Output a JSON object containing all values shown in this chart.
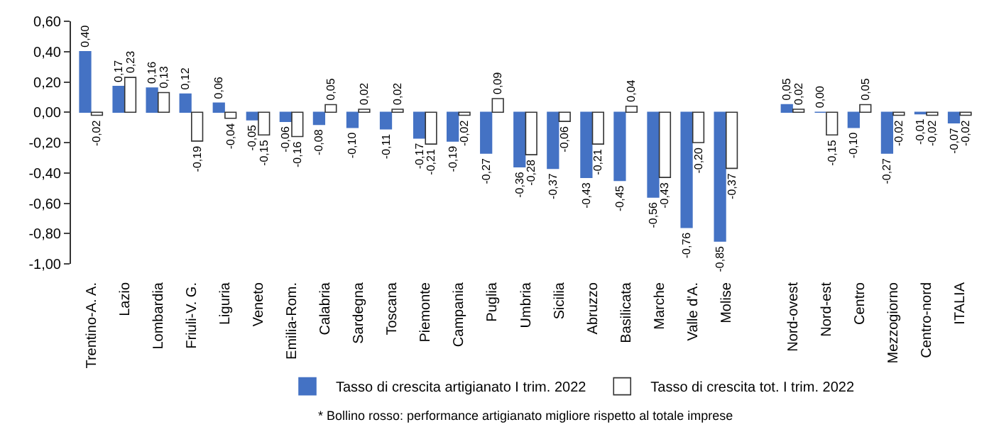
{
  "chart_data": {
    "type": "bar",
    "categories": [
      "Trentino-A. A.",
      "Lazio",
      "Lombardia",
      "Friuli-V. G.",
      "Liguria",
      "Veneto",
      "Emilia-Rom.",
      "Calabria",
      "Sardegna",
      "Toscana",
      "Piemonte",
      "Campania",
      "Puglia",
      "Umbria",
      "Sicilia",
      "Abruzzo",
      "Basilicata",
      "Marche",
      "Valle d'A.",
      "Molise",
      null,
      "Nord-ovest",
      "Nord-est",
      "Centro",
      "Mezzogiorno",
      "Centro-nord",
      "ITALIA"
    ],
    "series": [
      {
        "name": "Tasso di crescita artigianato I trim. 2022",
        "color": "#4472c4",
        "values": [
          0.4,
          0.17,
          0.16,
          0.12,
          0.06,
          -0.05,
          -0.06,
          -0.08,
          -0.1,
          -0.11,
          -0.17,
          -0.19,
          -0.27,
          -0.36,
          -0.37,
          -0.43,
          -0.45,
          -0.56,
          -0.76,
          -0.85,
          null,
          0.05,
          0.0,
          -0.1,
          -0.27,
          -0.01,
          -0.07
        ],
        "value_labels": [
          "0,40",
          "0,17",
          "0,16",
          "0,12",
          "0,06",
          "-0,05",
          "-0,06",
          "-0,08",
          "-0,10",
          "-0,11",
          "-0,17",
          "-0,19",
          "-0,27",
          "-0,36",
          "-0,37",
          "-0,43",
          "-0,45",
          "-0,56",
          "-0,76",
          "-0,85",
          null,
          "0,05",
          "0,00",
          "-0,10",
          "-0,27",
          "-0,01",
          "-0,07"
        ]
      },
      {
        "name": "Tasso di crescita tot. I trim. 2022",
        "color": "#ffffff",
        "values": [
          -0.02,
          0.23,
          0.13,
          -0.19,
          -0.04,
          -0.15,
          -0.16,
          0.05,
          0.02,
          0.02,
          -0.21,
          -0.02,
          0.09,
          -0.28,
          -0.06,
          -0.21,
          0.04,
          -0.43,
          -0.2,
          -0.37,
          null,
          0.02,
          -0.15,
          0.05,
          -0.02,
          -0.02,
          -0.02
        ],
        "value_labels": [
          "-0,02",
          "0,23",
          "0,13",
          "-0,19",
          "-0,04",
          "-0,15",
          "-0,16",
          "0,05",
          "0,02",
          "0,02",
          "-0,21",
          "-0,02",
          "0,09",
          "-0,28",
          "-0,06",
          "-0,21",
          "0,04",
          "-0,43",
          "-0,20",
          "-0,37",
          null,
          "0,02",
          "-0,15",
          "0,05",
          "-0,02",
          "-0,02",
          "-0,02"
        ]
      }
    ],
    "ylim": [
      -1.0,
      0.6
    ],
    "yticks": [
      {
        "value": -1.0,
        "label": "-1,00"
      },
      {
        "value": -0.8,
        "label": "-0,80"
      },
      {
        "value": -0.6,
        "label": "-0,60"
      },
      {
        "value": -0.4,
        "label": "-0,40"
      },
      {
        "value": -0.2,
        "label": "-0,20"
      },
      {
        "value": 0,
        "label": "0,00"
      },
      {
        "value": 0.2,
        "label": "0,20"
      },
      {
        "value": 0.4,
        "label": "0,40"
      },
      {
        "value": 0.6,
        "label": "0,60"
      }
    ],
    "grid": false,
    "legend": "bottom",
    "annotations": [
      "* Bollino rosso: performance artigianato migliore rispetto al totale imprese"
    ]
  }
}
